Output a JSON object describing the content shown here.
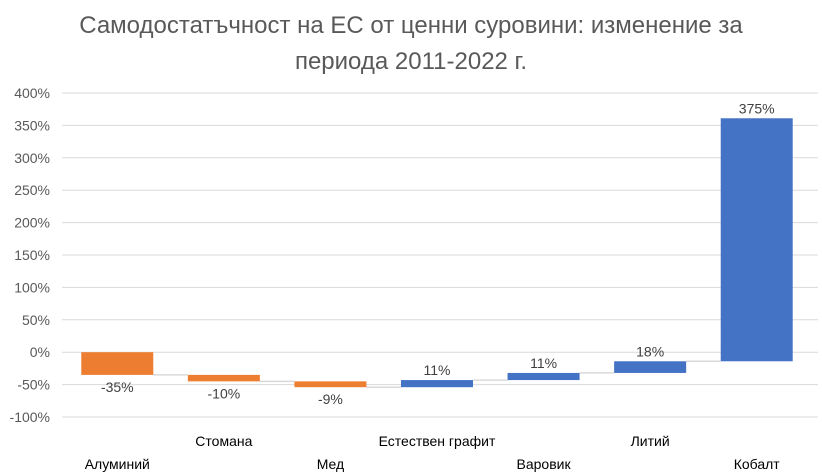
{
  "chart_data": {
    "type": "bar",
    "subtype": "waterfall",
    "title_lines": [
      "Самодостатъчност на ЕС от ценни суровини: изменение за",
      "периода 2011-2022 г."
    ],
    "categories": [
      "Алуминий",
      "Стомана",
      "Мед",
      "Естествен графит",
      "Варовик",
      "Литий",
      "Кобалт"
    ],
    "values": [
      -35,
      -10,
      -9,
      11,
      11,
      18,
      375
    ],
    "value_labels": [
      "-35%",
      "-10%",
      "-9%",
      "11%",
      "11%",
      "18%",
      "375%"
    ],
    "y_ticks": [
      "400%",
      "350%",
      "300%",
      "250%",
      "200%",
      "150%",
      "100%",
      "50%",
      "0%",
      "-50%",
      "-100%"
    ],
    "ylim": [
      -100,
      400
    ],
    "grid": true,
    "legend": "none",
    "colors": {
      "decrease": "#ED7D31",
      "increase": "#4472C4",
      "grid": "#D9D9D9",
      "connector": "#D9D9D9"
    }
  }
}
